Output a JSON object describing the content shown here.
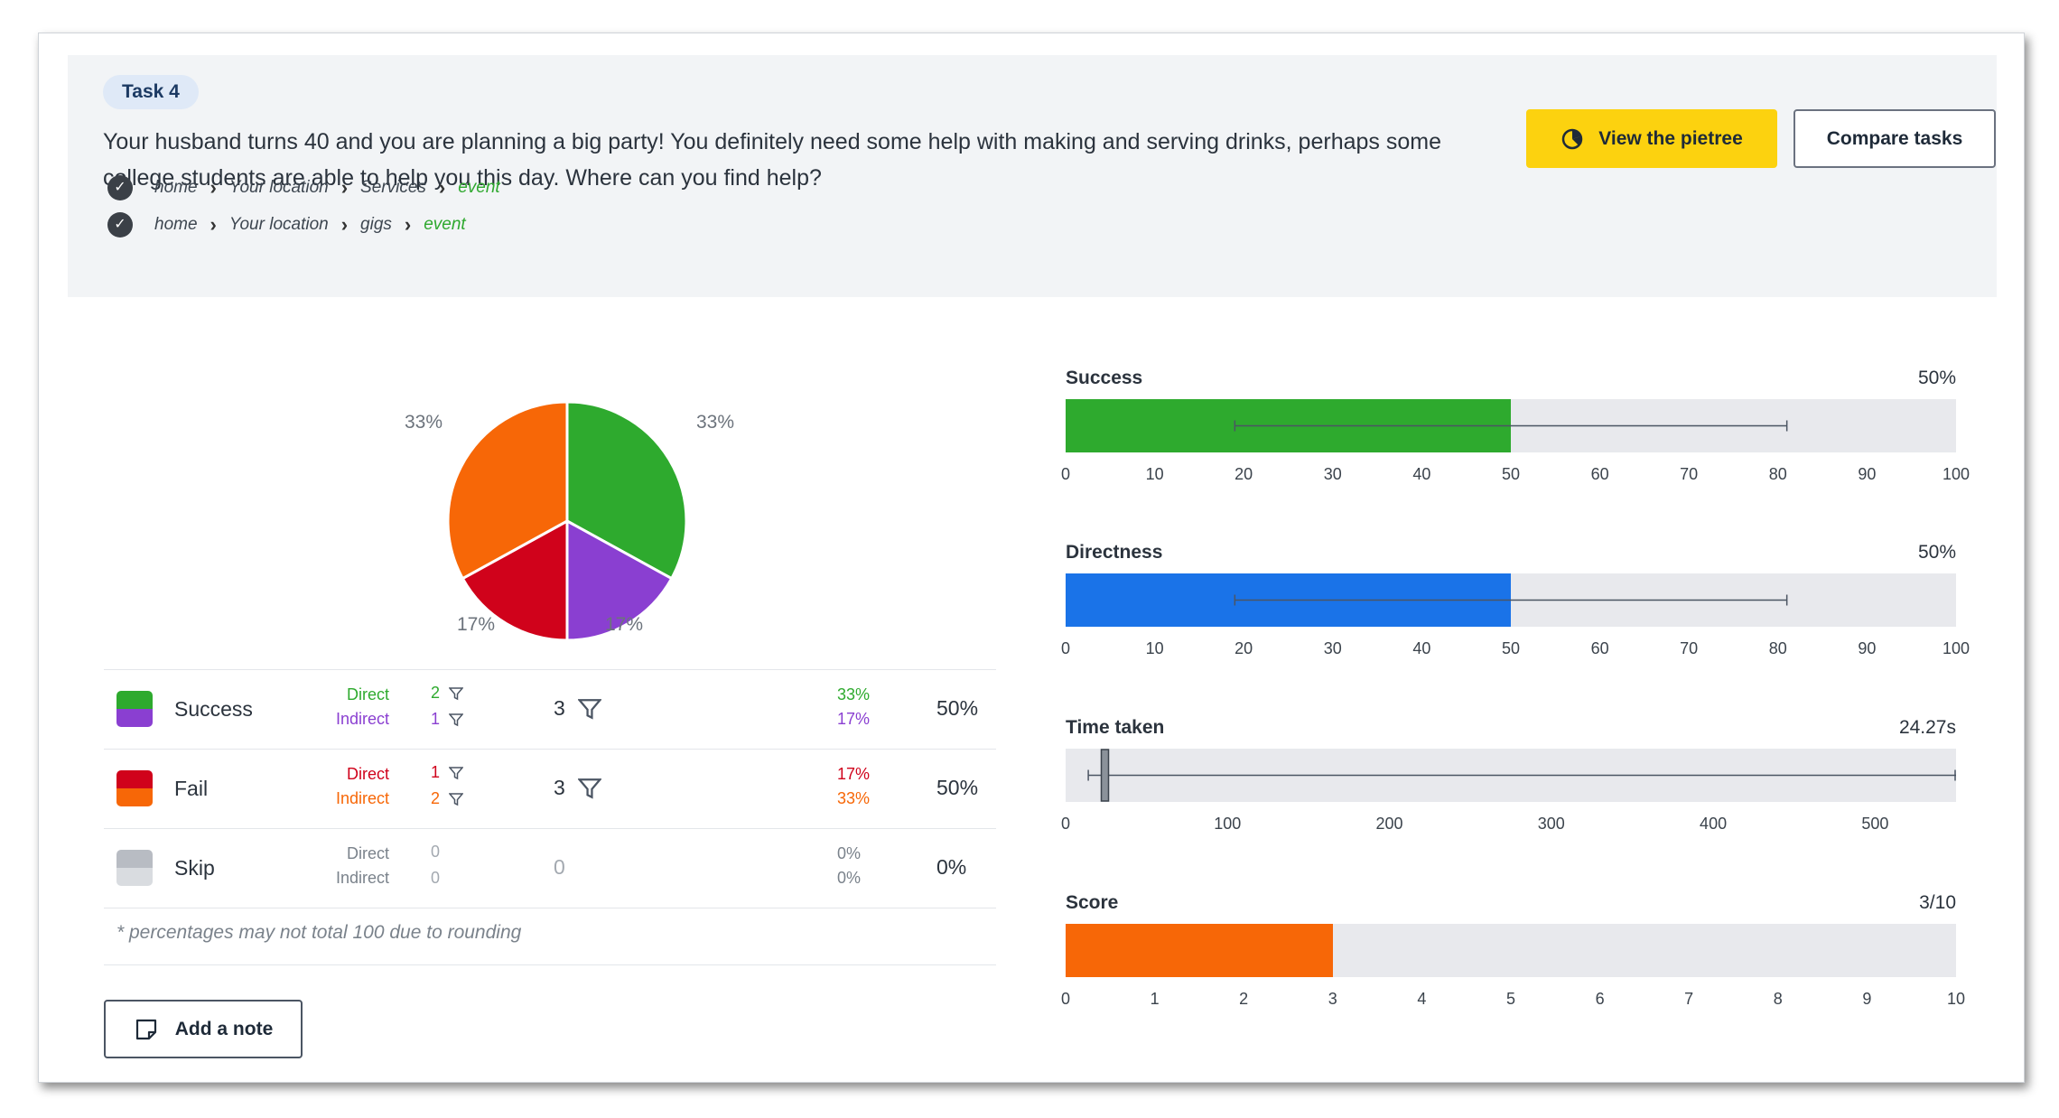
{
  "task": {
    "badge": "Task 4",
    "text": "Your husband turns 40 and you are planning a big party! You definitely need some help with making and serving drinks, perhaps some college students are able to help you this day. Where can you find help?",
    "paths": [
      {
        "crumbs": [
          "home",
          "Your location",
          "Services"
        ],
        "destination": "event",
        "icon": "check-icon"
      },
      {
        "crumbs": [
          "home",
          "Your location",
          "gigs"
        ],
        "destination": "event",
        "icon": "check-icon"
      }
    ]
  },
  "buttons": {
    "pietree": "View the pietree",
    "pietree_icon": "pie-chart-icon",
    "compare": "Compare tasks",
    "add_note": "Add a note",
    "add_note_icon": "note-icon"
  },
  "colors": {
    "direct_success": "#2eaa2e",
    "indirect_success": "#8a3fd1",
    "direct_fail": "#d0021b",
    "indirect_fail": "#f76707",
    "skip": "#b8bcc3",
    "directness": "#1a73e8",
    "button_yellow": "#fcd20f"
  },
  "pie": {
    "labels": [
      "33%",
      "17%",
      "17%",
      "33%"
    ],
    "slices": [
      {
        "name": "Direct success",
        "percent": 33,
        "color": "#2eaa2e"
      },
      {
        "name": "Indirect success",
        "percent": 17,
        "color": "#8a3fd1"
      },
      {
        "name": "Direct fail",
        "percent": 17,
        "color": "#d0021b"
      },
      {
        "name": "Indirect fail",
        "percent": 33,
        "color": "#f76707"
      }
    ]
  },
  "table": {
    "rows": [
      {
        "label": "Success",
        "direct_label": "Direct",
        "indirect_label": "Indirect",
        "direct_count": "2",
        "indirect_count": "1",
        "total": "3",
        "direct_pct": "33%",
        "indirect_pct": "17%",
        "row_pct": "50%"
      },
      {
        "label": "Fail",
        "direct_label": "Direct",
        "indirect_label": "Indirect",
        "direct_count": "1",
        "indirect_count": "2",
        "total": "3",
        "direct_pct": "17%",
        "indirect_pct": "33%",
        "row_pct": "50%"
      },
      {
        "label": "Skip",
        "direct_label": "Direct",
        "indirect_label": "Indirect",
        "direct_count": "0",
        "indirect_count": "0",
        "total": "0",
        "direct_pct": "0%",
        "indirect_pct": "0%",
        "row_pct": "0%"
      }
    ],
    "footnote": "* percentages may not total 100 due to rounding"
  },
  "metrics": {
    "success": {
      "label": "Success",
      "value": "50%",
      "level": 50,
      "range": [
        0,
        100
      ],
      "ticks": [
        "0",
        "10",
        "20",
        "30",
        "40",
        "50",
        "60",
        "70",
        "80",
        "90",
        "100"
      ],
      "ci": [
        19,
        81
      ],
      "color": "#2eaa2e"
    },
    "directness": {
      "label": "Directness",
      "value": "50%",
      "level": 50,
      "range": [
        0,
        100
      ],
      "ticks": [
        "0",
        "10",
        "20",
        "30",
        "40",
        "50",
        "60",
        "70",
        "80",
        "90",
        "100"
      ],
      "ci": [
        19,
        81
      ],
      "color": "#1a73e8"
    },
    "time": {
      "label": "Time taken",
      "value": "24.27s",
      "range": [
        0,
        550
      ],
      "ticks": [
        "0",
        "100",
        "200",
        "300",
        "400",
        "500"
      ],
      "tick_values": [
        0,
        100,
        200,
        300,
        400,
        500
      ],
      "median": 24.27,
      "whisker": [
        14,
        550
      ]
    },
    "score": {
      "label": "Score",
      "value": "3/10",
      "level": 3,
      "range": [
        0,
        10
      ],
      "ticks": [
        "0",
        "1",
        "2",
        "3",
        "4",
        "5",
        "6",
        "7",
        "8",
        "9",
        "10"
      ],
      "color": "#f76707"
    }
  }
}
